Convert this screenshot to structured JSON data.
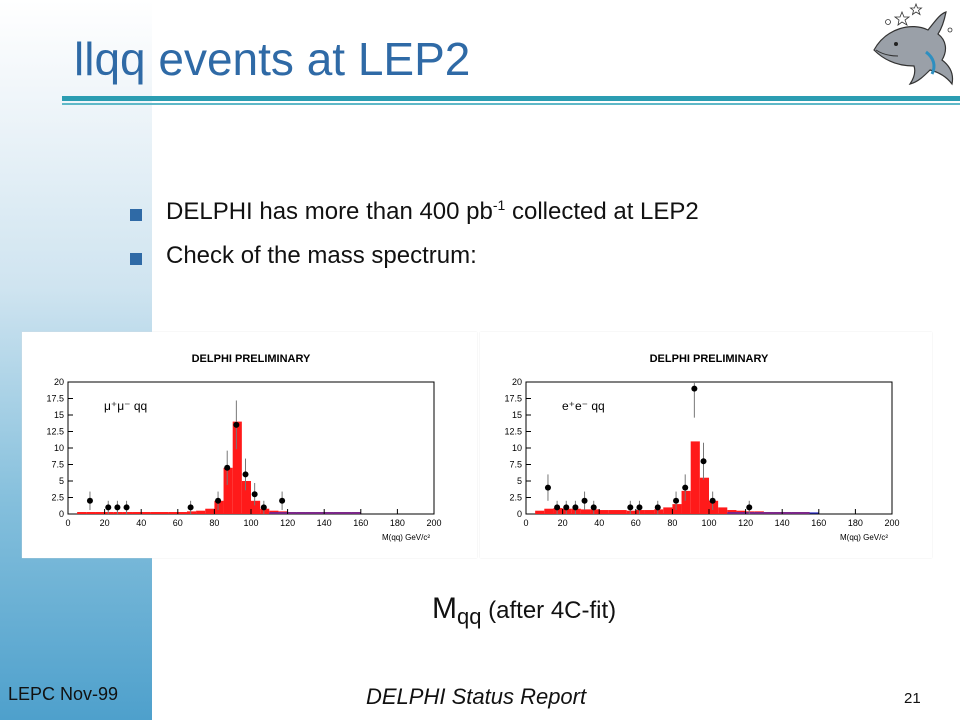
{
  "slide": {
    "title": "llqq events at LEP2",
    "bullets": [
      {
        "pre": "DELPHI has more than 400 pb",
        "sup": "-1",
        "post": " collected at LEP2"
      },
      {
        "pre": "Check of the mass spectrum:",
        "sup": "",
        "post": ""
      }
    ],
    "caption": {
      "main": "M",
      "sub": "qq",
      "rest": " (after 4C-fit)"
    },
    "footer": {
      "left": "LEPC Nov-99",
      "center": "DELPHI Status Report",
      "page": "21"
    },
    "icons": {
      "logo": "delphi-dolphin-logo-icon"
    },
    "colors": {
      "title": "#2f6aa6",
      "rule": "#2b9db2",
      "bar": "#ff1a1a"
    }
  },
  "chart_data": [
    {
      "type": "bar",
      "title": "DELPHI PRELIMINARY",
      "annotation": "μ⁺μ⁻ qq",
      "xlabel": "M(qq) GeV/c²",
      "xlim": [
        0,
        200
      ],
      "ylim": [
        0,
        20
      ],
      "xticks": [
        "0",
        "20",
        "40",
        "60",
        "80",
        "100",
        "120",
        "140",
        "160",
        "180",
        "200"
      ],
      "yticks": [
        "0",
        "2.5",
        "5",
        "7.5",
        "10",
        "12.5",
        "15",
        "17.5",
        "20"
      ],
      "bin_width": 5,
      "bars": [
        {
          "x": 5,
          "v": 0.3
        },
        {
          "x": 10,
          "v": 0.3
        },
        {
          "x": 15,
          "v": 0.3
        },
        {
          "x": 20,
          "v": 0.3
        },
        {
          "x": 25,
          "v": 0.3
        },
        {
          "x": 30,
          "v": 0.3
        },
        {
          "x": 35,
          "v": 0.3
        },
        {
          "x": 40,
          "v": 0.3
        },
        {
          "x": 45,
          "v": 0.3
        },
        {
          "x": 50,
          "v": 0.3
        },
        {
          "x": 55,
          "v": 0.3
        },
        {
          "x": 60,
          "v": 0.3
        },
        {
          "x": 65,
          "v": 0.4
        },
        {
          "x": 70,
          "v": 0.5
        },
        {
          "x": 75,
          "v": 0.8
        },
        {
          "x": 80,
          "v": 2.0
        },
        {
          "x": 85,
          "v": 7.0
        },
        {
          "x": 90,
          "v": 14.0
        },
        {
          "x": 95,
          "v": 5.0
        },
        {
          "x": 100,
          "v": 2.0
        },
        {
          "x": 105,
          "v": 0.8
        },
        {
          "x": 110,
          "v": 0.5
        },
        {
          "x": 115,
          "v": 0.4
        },
        {
          "x": 120,
          "v": 0.3
        },
        {
          "x": 125,
          "v": 0.3
        },
        {
          "x": 130,
          "v": 0.3
        },
        {
          "x": 135,
          "v": 0.3
        },
        {
          "x": 140,
          "v": 0.3
        },
        {
          "x": 145,
          "v": 0.3
        },
        {
          "x": 150,
          "v": 0.3
        },
        {
          "x": 155,
          "v": 0.3
        }
      ],
      "points": [
        {
          "x": 12,
          "y": 2,
          "err": 1.4
        },
        {
          "x": 22,
          "y": 1,
          "err": 1.0
        },
        {
          "x": 27,
          "y": 1,
          "err": 1.0
        },
        {
          "x": 32,
          "y": 1,
          "err": 1.0
        },
        {
          "x": 67,
          "y": 1,
          "err": 1.0
        },
        {
          "x": 82,
          "y": 2,
          "err": 1.4
        },
        {
          "x": 87,
          "y": 7,
          "err": 2.6
        },
        {
          "x": 92,
          "y": 13.5,
          "err": 3.7
        },
        {
          "x": 97,
          "y": 6,
          "err": 2.4
        },
        {
          "x": 102,
          "y": 3,
          "err": 1.7
        },
        {
          "x": 107,
          "y": 1,
          "err": 1.0
        },
        {
          "x": 117,
          "y": 2,
          "err": 1.4
        }
      ]
    },
    {
      "type": "bar",
      "title": "DELPHI PRELIMINARY",
      "annotation": "e⁺e⁻ qq",
      "xlabel": "M(qq) GeV/c²",
      "xlim": [
        0,
        200
      ],
      "ylim": [
        0,
        20
      ],
      "xticks": [
        "0",
        "20",
        "40",
        "60",
        "80",
        "100",
        "120",
        "140",
        "160",
        "180",
        "200"
      ],
      "yticks": [
        "0",
        "2.5",
        "5",
        "7.5",
        "10",
        "12.5",
        "15",
        "17.5",
        "20"
      ],
      "bin_width": 5,
      "bars": [
        {
          "x": 5,
          "v": 0.5
        },
        {
          "x": 10,
          "v": 0.8
        },
        {
          "x": 15,
          "v": 0.9
        },
        {
          "x": 20,
          "v": 0.8
        },
        {
          "x": 25,
          "v": 0.8
        },
        {
          "x": 30,
          "v": 0.7
        },
        {
          "x": 35,
          "v": 0.7
        },
        {
          "x": 40,
          "v": 0.6
        },
        {
          "x": 45,
          "v": 0.6
        },
        {
          "x": 50,
          "v": 0.6
        },
        {
          "x": 55,
          "v": 0.5
        },
        {
          "x": 60,
          "v": 0.6
        },
        {
          "x": 65,
          "v": 0.6
        },
        {
          "x": 70,
          "v": 0.7
        },
        {
          "x": 75,
          "v": 1.0
        },
        {
          "x": 80,
          "v": 1.5
        },
        {
          "x": 85,
          "v": 3.5
        },
        {
          "x": 90,
          "v": 11.0
        },
        {
          "x": 95,
          "v": 5.5
        },
        {
          "x": 100,
          "v": 2.0
        },
        {
          "x": 105,
          "v": 1.0
        },
        {
          "x": 110,
          "v": 0.6
        },
        {
          "x": 115,
          "v": 0.5
        },
        {
          "x": 120,
          "v": 0.4
        },
        {
          "x": 125,
          "v": 0.4
        },
        {
          "x": 130,
          "v": 0.3
        },
        {
          "x": 135,
          "v": 0.3
        },
        {
          "x": 140,
          "v": 0.3
        },
        {
          "x": 145,
          "v": 0.3
        },
        {
          "x": 150,
          "v": 0.3
        }
      ],
      "points": [
        {
          "x": 12,
          "y": 4,
          "err": 2.0
        },
        {
          "x": 17,
          "y": 1,
          "err": 1.0
        },
        {
          "x": 22,
          "y": 1,
          "err": 1.0
        },
        {
          "x": 27,
          "y": 1,
          "err": 1.0
        },
        {
          "x": 32,
          "y": 2,
          "err": 1.4
        },
        {
          "x": 37,
          "y": 1,
          "err": 1.0
        },
        {
          "x": 57,
          "y": 1,
          "err": 1.0
        },
        {
          "x": 62,
          "y": 1,
          "err": 1.0
        },
        {
          "x": 72,
          "y": 1,
          "err": 1.0
        },
        {
          "x": 82,
          "y": 2,
          "err": 1.4
        },
        {
          "x": 87,
          "y": 4,
          "err": 2.0
        },
        {
          "x": 92,
          "y": 19,
          "err": 4.4
        },
        {
          "x": 97,
          "y": 8,
          "err": 2.8
        },
        {
          "x": 102,
          "y": 2,
          "err": 1.4
        },
        {
          "x": 122,
          "y": 1,
          "err": 1.0
        }
      ]
    }
  ]
}
